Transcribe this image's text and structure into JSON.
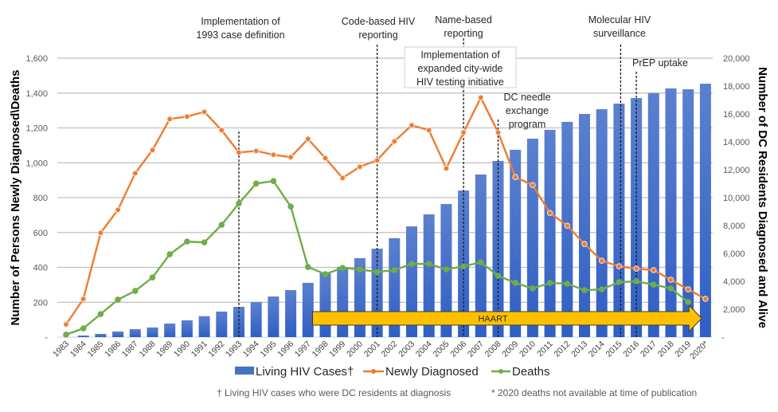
{
  "chart_data": {
    "type": "bar+line",
    "title": "",
    "categories": [
      "1983",
      "1984",
      "1985",
      "1986",
      "1987",
      "1988",
      "1989",
      "1990",
      "1991",
      "1992",
      "1993",
      "1994",
      "1995",
      "1996",
      "1997",
      "1998",
      "1999",
      "2000",
      "2001",
      "2002",
      "2003",
      "2004",
      "2005",
      "2006",
      "2007",
      "2008",
      "2009",
      "2010",
      "2011",
      "2012",
      "2013",
      "2014",
      "2015",
      "2016",
      "2017",
      "2018",
      "2019",
      "2020*"
    ],
    "ylabel_left": "Number of Persons Newly Diagnosed\\Deaths",
    "ylabel_right": "Number of DC Residents Diagnosed and Alive",
    "ylim_left": [
      0,
      1600
    ],
    "ylim_right": [
      0,
      20000
    ],
    "yticks_left": [
      "-",
      "200",
      "400",
      "600",
      "800",
      "1,000",
      "1,200",
      "1,400",
      "1,600"
    ],
    "yticks_right": [
      "-",
      "2,000",
      "4,000",
      "6,000",
      "8,000",
      "10,000",
      "12,000",
      "14,000",
      "16,000",
      "18,000",
      "20,000"
    ],
    "grid": true,
    "legend_position": "bottom",
    "series": [
      {
        "name": "Living HIV Cases†",
        "type": "bar",
        "axis": "right",
        "color": "#4472c4",
        "values": [
          0,
          110,
          230,
          400,
          570,
          690,
          970,
          1200,
          1500,
          1830,
          2170,
          2510,
          2910,
          3370,
          3890,
          4570,
          5030,
          5660,
          6340,
          7090,
          7940,
          8800,
          9540,
          10510,
          11660,
          12630,
          13430,
          14230,
          14860,
          15430,
          16000,
          16340,
          16740,
          17140,
          17490,
          17830,
          17770,
          18170
        ]
      },
      {
        "name": "Newly Diagnosed",
        "type": "line",
        "axis": "left",
        "color": "#ed7d31",
        "values": [
          73,
          219,
          598,
          730,
          940,
          1073,
          1251,
          1265,
          1292,
          1187,
          1059,
          1068,
          1046,
          1032,
          1137,
          1027,
          913,
          977,
          1014,
          1123,
          1215,
          1187,
          968,
          1174,
          1374,
          1174,
          918,
          872,
          712,
          639,
          534,
          438,
          406,
          393,
          384,
          329,
          274,
          219
        ]
      },
      {
        "name": "Deaths",
        "type": "line",
        "axis": "left",
        "color": "#70ad47",
        "values": [
          14,
          50,
          132,
          215,
          265,
          342,
          475,
          548,
          543,
          644,
          767,
          881,
          895,
          749,
          402,
          361,
          397,
          388,
          374,
          384,
          420,
          420,
          388,
          406,
          429,
          352,
          311,
          279,
          311,
          306,
          269,
          274,
          315,
          320,
          301,
          279,
          201,
          null
        ]
      }
    ],
    "annotations": [
      {
        "year": "1993",
        "lines": [
          "Implementation of",
          "1993 case definition"
        ]
      },
      {
        "year": "2001",
        "lines": [
          "Code-based HIV",
          "reporting"
        ]
      },
      {
        "year": "2006",
        "lines": [
          "Name-based",
          "reporting"
        ]
      },
      {
        "year": "2006",
        "boxed": true,
        "lines": [
          "Implementation of",
          "expanded city-wide",
          "HIV testing initiative"
        ]
      },
      {
        "year": "2008",
        "lines": [
          "DC needle",
          "exchange",
          "program"
        ]
      },
      {
        "year": "2015",
        "lines": [
          "Molecular HIV",
          "surveillance"
        ]
      },
      {
        "year": "2016",
        "lines": [
          "PrEP uptake"
        ]
      }
    ],
    "haart": {
      "label": "HAART",
      "start": "1998",
      "end": "2019",
      "color": "#ffc000"
    },
    "footnotes": [
      "† Living HIV cases who were DC residents at diagnosis",
      "* 2020 deaths not available at time of publication"
    ]
  }
}
